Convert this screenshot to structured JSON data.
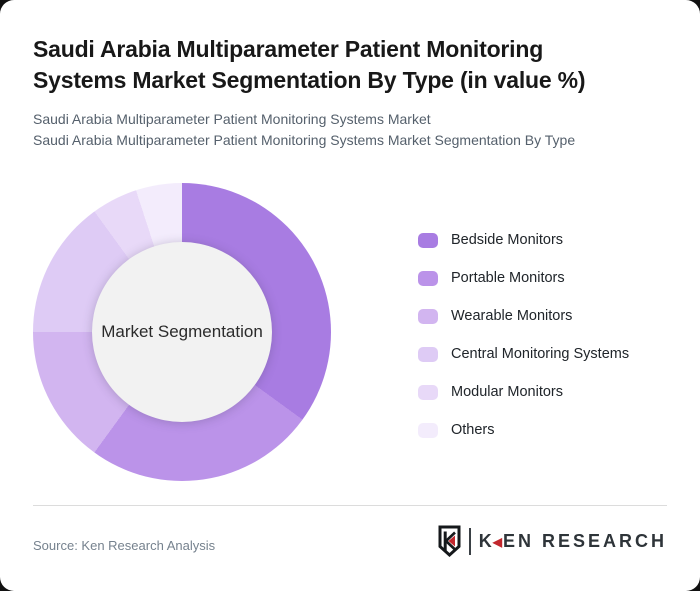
{
  "theme": {
    "page_bg": "#111111",
    "card_bg": "#ffffff",
    "title_color": "#181818",
    "subtitle_color": "#55606c",
    "divider_color": "#dcdcdc",
    "source_color": "#76828e"
  },
  "header": {
    "title_line1": "Saudi Arabia Multiparameter Patient Monitoring",
    "title_line2": "Systems Market Segmentation By Type (in value %)",
    "subtitle1": "Saudi Arabia Multiparameter Patient Monitoring Systems Market",
    "subtitle2": "Saudi Arabia Multiparameter Patient Monitoring Systems Market Segmentation By Type"
  },
  "chart_data": {
    "type": "pie",
    "variant": "donut",
    "title": "Saudi Arabia Multiparameter Patient Monitoring Systems Market Segmentation By Type (in value %)",
    "center_label": "Market Segmentation",
    "categories": [
      "Bedside Monitors",
      "Portable Monitors",
      "Wearable Monitors",
      "Central Monitoring Systems",
      "Modular Monitors",
      "Others"
    ],
    "values": [
      35,
      25,
      15,
      15,
      5,
      5
    ],
    "unit": "% of value",
    "colors": [
      "#a87ce2",
      "#bb93e9",
      "#d2b5f0",
      "#decbf5",
      "#e8d9f8",
      "#f3ecfc"
    ],
    "start_angle_deg": 0,
    "direction": "clockwise",
    "legend_position": "right",
    "inner_circle_color": "#f2f2f2"
  },
  "footer": {
    "source": "Source: Ken Research Analysis",
    "logo": {
      "shield_letter": "K",
      "brand_k": "K",
      "arrow": "◀",
      "brand_rest": "EN RESEARCH",
      "accent_color": "#c2272d"
    }
  }
}
